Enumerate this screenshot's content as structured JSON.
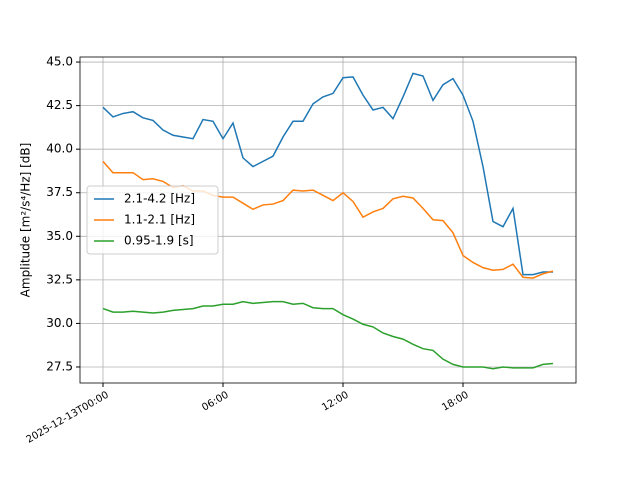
{
  "chart_data": {
    "type": "line",
    "ylabel": "Amplitude [m²/s⁴/Hz] [dB]",
    "x": [
      "2025-12-13T00:00",
      "2025-12-13T00:30",
      "2025-12-13T01:00",
      "2025-12-13T01:30",
      "2025-12-13T02:00",
      "2025-12-13T02:30",
      "2025-12-13T03:00",
      "2025-12-13T03:30",
      "2025-12-13T04:00",
      "2025-12-13T04:30",
      "2025-12-13T05:00",
      "2025-12-13T05:30",
      "2025-12-13T06:00",
      "2025-12-13T06:30",
      "2025-12-13T07:00",
      "2025-12-13T07:30",
      "2025-12-13T08:00",
      "2025-12-13T08:30",
      "2025-12-13T09:00",
      "2025-12-13T09:30",
      "2025-12-13T10:00",
      "2025-12-13T10:30",
      "2025-12-13T11:00",
      "2025-12-13T11:30",
      "2025-12-13T12:00",
      "2025-12-13T12:30",
      "2025-12-13T13:00",
      "2025-12-13T13:30",
      "2025-12-13T14:00",
      "2025-12-13T14:30",
      "2025-12-13T15:00",
      "2025-12-13T15:30",
      "2025-12-13T16:00",
      "2025-12-13T16:30",
      "2025-12-13T17:00",
      "2025-12-13T17:30",
      "2025-12-13T18:00",
      "2025-12-13T18:30",
      "2025-12-13T19:00",
      "2025-12-13T19:30",
      "2025-12-13T20:00",
      "2025-12-13T20:30",
      "2025-12-13T21:00",
      "2025-12-13T21:30",
      "2025-12-13T22:00",
      "2025-12-13T22:30"
    ],
    "series": [
      {
        "name": "2.1-4.2 [Hz]",
        "color": "#1f77b4",
        "values": [
          42.4,
          41.85,
          42.05,
          42.15,
          41.8,
          41.65,
          41.1,
          40.8,
          40.7,
          40.6,
          41.7,
          41.6,
          40.6,
          41.5,
          39.5,
          39.0,
          39.3,
          39.6,
          40.7,
          41.6,
          41.6,
          42.6,
          43.0,
          43.2,
          44.1,
          44.15,
          43.1,
          42.25,
          42.4,
          41.75,
          43.0,
          44.35,
          44.2,
          42.8,
          43.7,
          44.05,
          43.1,
          41.6,
          39.0,
          35.85,
          35.55,
          36.6,
          32.8,
          32.8,
          32.95,
          32.95
        ]
      },
      {
        "name": "1.1-2.1 [Hz]",
        "color": "#ff7f0e",
        "values": [
          39.3,
          38.65,
          38.65,
          38.65,
          38.25,
          38.3,
          38.15,
          37.8,
          37.9,
          37.6,
          37.6,
          37.35,
          37.25,
          37.25,
          36.9,
          36.55,
          36.8,
          36.85,
          37.05,
          37.65,
          37.6,
          37.65,
          37.35,
          37.05,
          37.5,
          37.0,
          36.1,
          36.4,
          36.6,
          37.15,
          37.3,
          37.2,
          36.6,
          35.95,
          35.9,
          35.2,
          33.9,
          33.5,
          33.2,
          33.05,
          33.1,
          33.4,
          32.65,
          32.6,
          32.85,
          33.0
        ]
      },
      {
        "name": "0.95-1.9 [s]",
        "color": "#2ca02c",
        "values": [
          30.85,
          30.65,
          30.65,
          30.7,
          30.65,
          30.6,
          30.65,
          30.75,
          30.8,
          30.85,
          31.0,
          31.0,
          31.1,
          31.1,
          31.25,
          31.15,
          31.2,
          31.25,
          31.25,
          31.1,
          31.15,
          30.9,
          30.85,
          30.85,
          30.5,
          30.25,
          29.95,
          29.8,
          29.45,
          29.25,
          29.1,
          28.8,
          28.55,
          28.45,
          27.95,
          27.65,
          27.5,
          27.5,
          27.5,
          27.4,
          27.5,
          27.45,
          27.45,
          27.45,
          27.65,
          27.7
        ]
      }
    ],
    "xlim": [
      "2025-12-12T22:51",
      "2025-12-13T23:39"
    ],
    "xticks": [
      {
        "value": "2025-12-13T00:00",
        "label": "2025-12-13T00:00"
      },
      {
        "value": "2025-12-13T06:00",
        "label": "06:00"
      },
      {
        "value": "2025-12-13T12:00",
        "label": "12:00"
      },
      {
        "value": "2025-12-13T18:00",
        "label": "18:00"
      }
    ],
    "ylim": [
      26.58,
      45.29
    ],
    "yticks": [
      {
        "value": 27.5,
        "label": "27.5"
      },
      {
        "value": 30,
        "label": "30.0"
      },
      {
        "value": 32.5,
        "label": "32.5"
      },
      {
        "value": 35,
        "label": "35.0"
      },
      {
        "value": 37.5,
        "label": "37.5"
      },
      {
        "value": 40,
        "label": "40.0"
      },
      {
        "value": 42.5,
        "label": "42.5"
      },
      {
        "value": 45,
        "label": "45.0"
      }
    ],
    "grid": true,
    "legend": "center left"
  }
}
